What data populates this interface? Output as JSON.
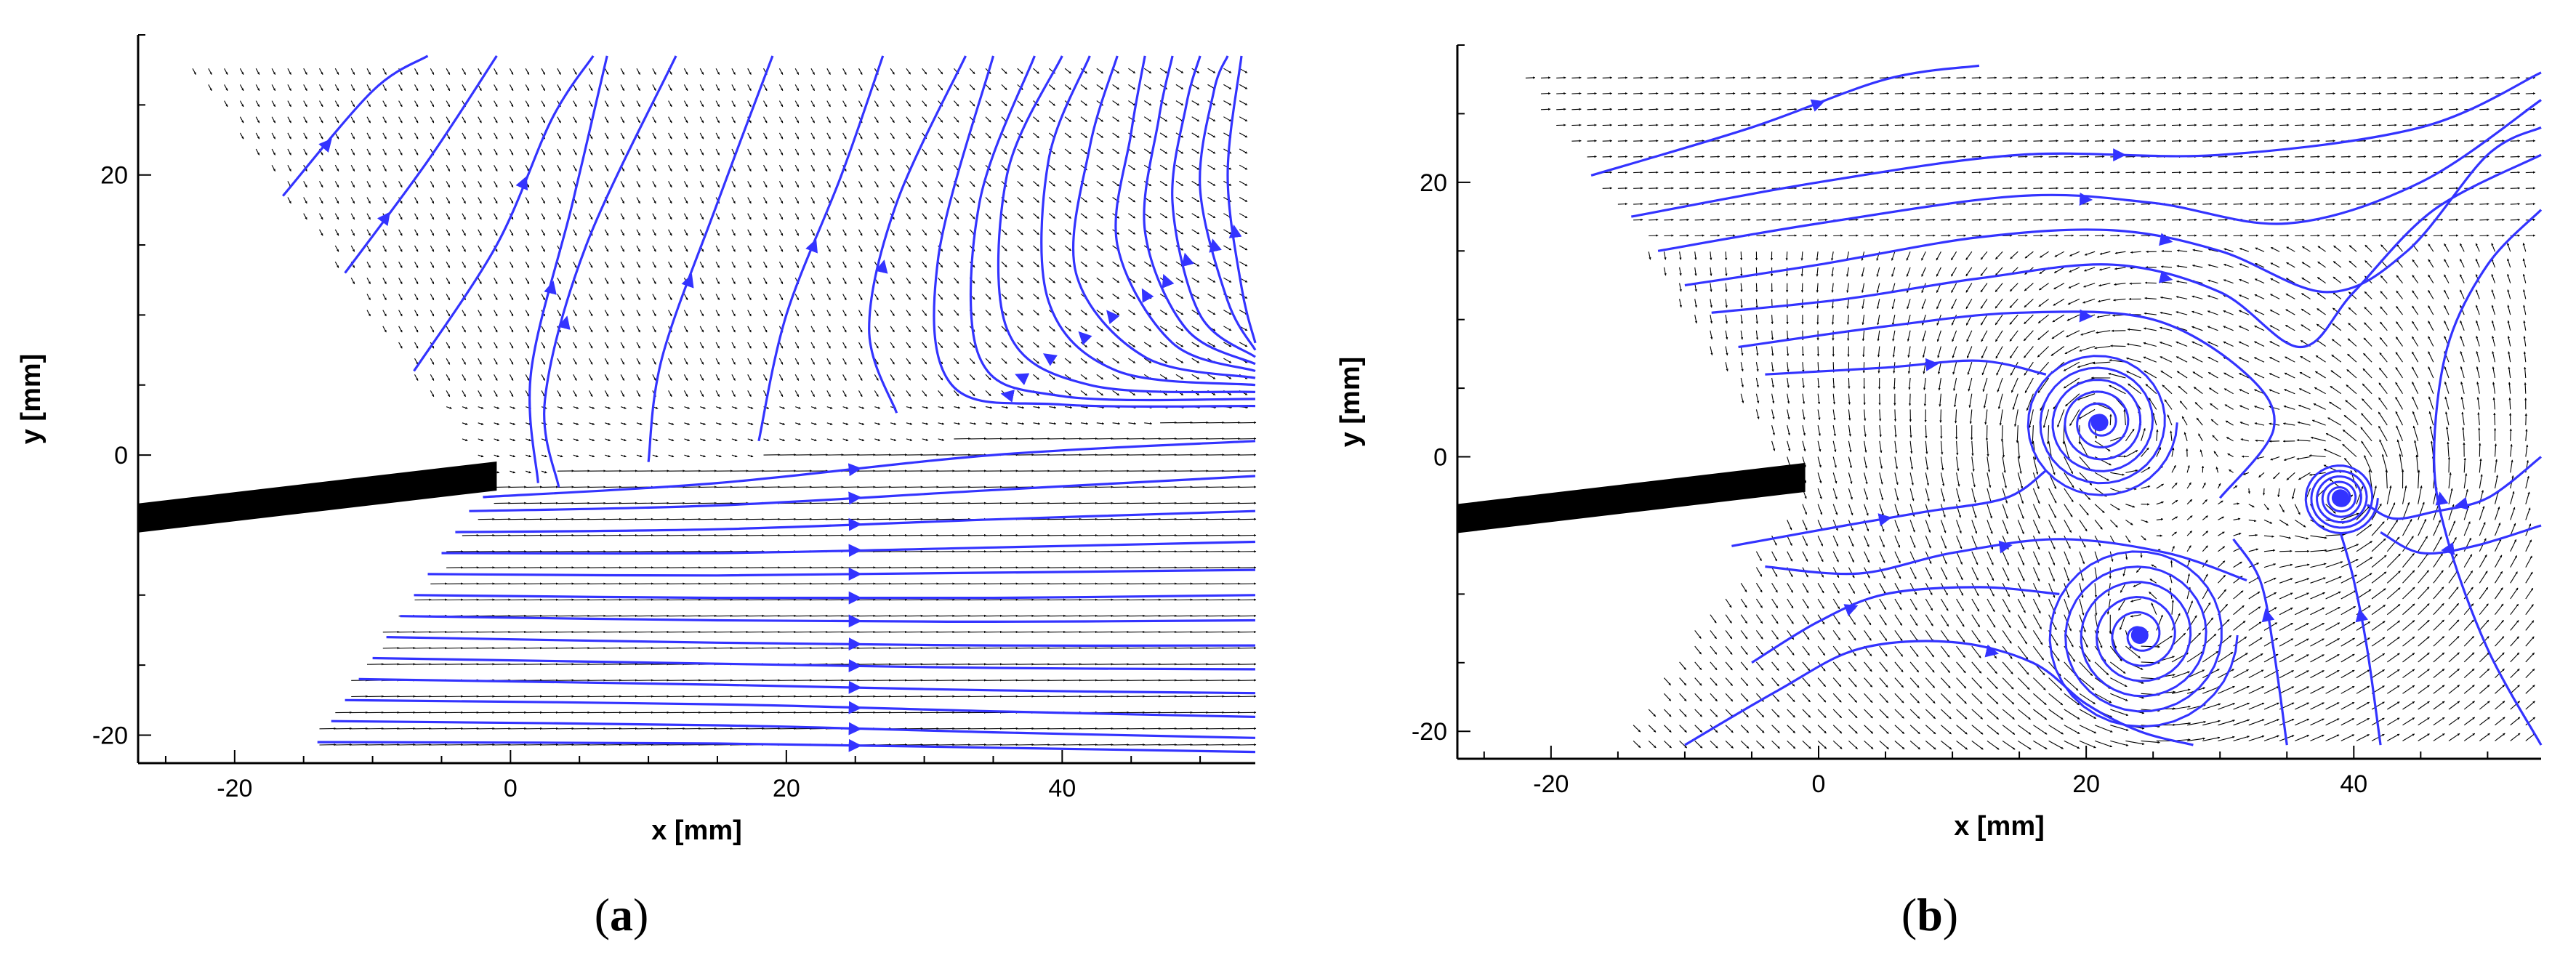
{
  "chart_data": [
    {
      "type": "vector-field",
      "panel_label": "a",
      "xlabel": "x [mm]",
      "ylabel": "y [mm]",
      "xlim": [
        -27,
        54
      ],
      "ylim": [
        -22,
        30
      ],
      "xticks": [
        -20,
        0,
        20,
        40
      ],
      "yticks": [
        -20,
        0,
        20
      ],
      "streamline_color": "#3333ff",
      "vector_color": "#000000",
      "body": {
        "type": "plate",
        "from": [
          -27,
          -4.5
        ],
        "to": [
          -1,
          -1.5
        ]
      },
      "mask_polygon": [
        [
          -24,
          28.5
        ],
        [
          -16,
          18
        ],
        [
          -1.5,
          -2
        ],
        [
          -1.5,
          -3
        ],
        [
          -9,
          -12
        ],
        [
          -15,
          -21
        ],
        [
          -27,
          -21
        ],
        [
          -27,
          28.5
        ]
      ],
      "domain": {
        "x_top_left": -24,
        "y_top": 28.5,
        "y_bottom": -21
      },
      "flow_pattern": "attached-jet-with-turning-outer-flow",
      "streamlines": [
        [
          [
            -16.5,
            18.5
          ],
          [
            -10,
            26
          ],
          [
            -6,
            28.5
          ]
        ],
        [
          [
            -12,
            13
          ],
          [
            -6,
            21
          ],
          [
            -1,
            28.5
          ]
        ],
        [
          [
            -7,
            6
          ],
          [
            -1,
            15
          ],
          [
            3,
            24
          ],
          [
            6,
            28.5
          ]
        ],
        [
          [
            2,
            -2
          ],
          [
            1.5,
            6
          ],
          [
            4.5,
            18
          ],
          [
            7,
            28.5
          ]
        ],
        [
          [
            3.5,
            -2.3
          ],
          [
            2.5,
            4
          ],
          [
            5.5,
            15
          ],
          [
            12,
            28.5
          ]
        ],
        [
          [
            10,
            -0.5
          ],
          [
            11,
            7
          ],
          [
            15,
            18
          ],
          [
            19,
            28.5
          ]
        ],
        [
          [
            18,
            1
          ],
          [
            20,
            10
          ],
          [
            24,
            20
          ],
          [
            27,
            28.5
          ]
        ],
        [
          [
            28,
            3
          ],
          [
            26,
            9
          ],
          [
            28,
            18
          ],
          [
            33,
            28.5
          ]
        ],
        [
          [
            54,
            3.5
          ],
          [
            40,
            3.6
          ],
          [
            32,
            5
          ],
          [
            31,
            14
          ],
          [
            35,
            28.5
          ]
        ],
        [
          [
            54,
            4
          ],
          [
            40,
            4.2
          ],
          [
            34,
            7
          ],
          [
            34,
            18
          ],
          [
            38,
            28.5
          ]
        ],
        [
          [
            54,
            4.5
          ],
          [
            42,
            5
          ],
          [
            36,
            9
          ],
          [
            36,
            20
          ],
          [
            40,
            28.5
          ]
        ],
        [
          [
            54,
            5
          ],
          [
            44,
            6
          ],
          [
            39,
            11
          ],
          [
            39,
            21
          ],
          [
            42,
            28.5
          ]
        ],
        [
          [
            54,
            5.5
          ],
          [
            46,
            7
          ],
          [
            41,
            13
          ],
          [
            42,
            22
          ],
          [
            44,
            28.5
          ]
        ],
        [
          [
            54,
            6
          ],
          [
            48,
            8
          ],
          [
            44,
            15
          ],
          [
            45,
            23
          ],
          [
            46,
            28.5
          ]
        ],
        [
          [
            54,
            6.5
          ],
          [
            49,
            9
          ],
          [
            46,
            16
          ],
          [
            47,
            24
          ],
          [
            48,
            28.5
          ]
        ],
        [
          [
            54,
            7
          ],
          [
            50,
            10
          ],
          [
            48,
            18
          ],
          [
            49,
            25
          ],
          [
            50,
            28.5
          ]
        ],
        [
          [
            54,
            7.5
          ],
          [
            52,
            11
          ],
          [
            50,
            19
          ],
          [
            51,
            26
          ],
          [
            52,
            28.5
          ]
        ],
        [
          [
            54,
            8
          ],
          [
            53,
            12
          ],
          [
            52,
            20
          ],
          [
            53,
            28.5
          ]
        ],
        [
          [
            -2,
            -3
          ],
          [
            15,
            -2
          ],
          [
            35,
            0
          ],
          [
            54,
            1
          ]
        ],
        [
          [
            -3,
            -4
          ],
          [
            15,
            -3.6
          ],
          [
            35,
            -2.5
          ],
          [
            54,
            -1.5
          ]
        ],
        [
          [
            -4,
            -5.5
          ],
          [
            15,
            -5.3
          ],
          [
            35,
            -4.6
          ],
          [
            54,
            -4
          ]
        ],
        [
          [
            -5,
            -7
          ],
          [
            15,
            -7
          ],
          [
            35,
            -6.6
          ],
          [
            54,
            -6.2
          ]
        ],
        [
          [
            -6,
            -8.5
          ],
          [
            15,
            -8.6
          ],
          [
            35,
            -8.4
          ],
          [
            54,
            -8.2
          ]
        ],
        [
          [
            -7,
            -10
          ],
          [
            15,
            -10.2
          ],
          [
            35,
            -10.2
          ],
          [
            54,
            -10
          ]
        ],
        [
          [
            -8,
            -11.5
          ],
          [
            15,
            -11.8
          ],
          [
            35,
            -11.9
          ],
          [
            54,
            -11.8
          ]
        ],
        [
          [
            -9,
            -13
          ],
          [
            15,
            -13.4
          ],
          [
            35,
            -13.6
          ],
          [
            54,
            -13.6
          ]
        ],
        [
          [
            -10,
            -14.5
          ],
          [
            15,
            -14.9
          ],
          [
            35,
            -15.2
          ],
          [
            54,
            -15.3
          ]
        ],
        [
          [
            -11,
            -16
          ],
          [
            15,
            -16.4
          ],
          [
            35,
            -16.8
          ],
          [
            54,
            -17
          ]
        ],
        [
          [
            -12,
            -17.5
          ],
          [
            15,
            -17.8
          ],
          [
            35,
            -18.3
          ],
          [
            54,
            -18.7
          ]
        ],
        [
          [
            -13,
            -19
          ],
          [
            15,
            -19.3
          ],
          [
            35,
            -19.8
          ],
          [
            54,
            -20.2
          ]
        ],
        [
          [
            -14,
            -20.5
          ],
          [
            15,
            -20.6
          ],
          [
            35,
            -20.9
          ],
          [
            54,
            -21.2
          ]
        ]
      ]
    },
    {
      "type": "vector-field",
      "panel_label": "b",
      "xlabel": "x [mm]",
      "ylabel": "y [mm]",
      "xlim": [
        -27,
        54
      ],
      "ylim": [
        -22,
        30
      ],
      "xticks": [
        -20,
        0,
        20,
        40
      ],
      "yticks": [
        -20,
        0,
        20
      ],
      "streamline_color": "#3333ff",
      "vector_color": "#000000",
      "body": {
        "type": "plate",
        "from": [
          -27,
          -4.5
        ],
        "to": [
          -1,
          -1.5
        ]
      },
      "mask_polygon": [
        [
          -23,
          28
        ],
        [
          -15,
          18
        ],
        [
          -1.5,
          -2
        ],
        [
          -1.5,
          -3
        ],
        [
          -9,
          -12
        ],
        [
          -15,
          -21
        ],
        [
          -27,
          -21
        ],
        [
          -27,
          28
        ]
      ],
      "domain": {
        "x_top_left": -23,
        "y_top": 28,
        "y_bottom": -21
      },
      "flow_pattern": "separated-vortex-shedding",
      "vortex_centers": [
        [
          21,
          2.5
        ],
        [
          24,
          -13
        ],
        [
          39,
          -3
        ]
      ],
      "streamlines": [
        [
          [
            -17,
            20.5
          ],
          [
            -5,
            24
          ],
          [
            5,
            27.5
          ],
          [
            12,
            28.5
          ]
        ],
        [
          [
            -14,
            17.5
          ],
          [
            0,
            20
          ],
          [
            15,
            22
          ],
          [
            30,
            22
          ],
          [
            45,
            24
          ],
          [
            54,
            28
          ]
        ],
        [
          [
            -12,
            15
          ],
          [
            0,
            17
          ],
          [
            15,
            19
          ],
          [
            25,
            18.5
          ],
          [
            35,
            17
          ],
          [
            45,
            20
          ],
          [
            54,
            26
          ]
        ],
        [
          [
            -10,
            12.5
          ],
          [
            0,
            14
          ],
          [
            12,
            16
          ],
          [
            22,
            16.5
          ],
          [
            30,
            15
          ],
          [
            38,
            12
          ],
          [
            44,
            15
          ],
          [
            50,
            22
          ],
          [
            54,
            24
          ]
        ],
        [
          [
            -8,
            10.5
          ],
          [
            2,
            11.5
          ],
          [
            12,
            13
          ],
          [
            22,
            14
          ],
          [
            30,
            12
          ],
          [
            36,
            8
          ],
          [
            40,
            12
          ],
          [
            46,
            18
          ],
          [
            54,
            22
          ]
        ],
        [
          [
            -6,
            8
          ],
          [
            5,
            9.5
          ],
          [
            15,
            10.5
          ],
          [
            25,
            10
          ],
          [
            32,
            6
          ],
          [
            34,
            2
          ],
          [
            30,
            -3
          ]
        ],
        [
          [
            -4,
            6
          ],
          [
            5,
            6.5
          ],
          [
            12,
            7
          ],
          [
            17,
            6
          ]
        ],
        [
          [
            -6.5,
            -6.5
          ],
          [
            2,
            -5
          ],
          [
            8,
            -4
          ],
          [
            14,
            -3
          ],
          [
            17,
            -1
          ]
        ],
        [
          [
            -4,
            -8
          ],
          [
            3,
            -8.5
          ],
          [
            10,
            -7
          ],
          [
            18,
            -6
          ],
          [
            26,
            -7
          ],
          [
            32,
            -9
          ]
        ],
        [
          [
            -5,
            -15
          ],
          [
            0,
            -12
          ],
          [
            5,
            -10
          ],
          [
            12,
            -9.5
          ],
          [
            18,
            -10
          ]
        ],
        [
          [
            -10,
            -21
          ],
          [
            -3,
            -17
          ],
          [
            3,
            -14
          ],
          [
            10,
            -13.5
          ],
          [
            16,
            -15
          ],
          [
            20,
            -18
          ],
          [
            24,
            -20
          ],
          [
            28,
            -21
          ]
        ],
        [
          [
            54,
            -21
          ],
          [
            50,
            -14
          ],
          [
            47,
            -6
          ],
          [
            46,
            0
          ],
          [
            47,
            8
          ],
          [
            50,
            14
          ],
          [
            54,
            18
          ]
        ],
        [
          [
            54,
            0
          ],
          [
            50,
            -3
          ],
          [
            46,
            -4
          ],
          [
            43,
            -4.5
          ],
          [
            41,
            -3.5
          ]
        ],
        [
          [
            54,
            -5
          ],
          [
            49,
            -6.5
          ],
          [
            45,
            -7
          ],
          [
            42,
            -5.5
          ]
        ],
        [
          [
            42,
            -21
          ],
          [
            41,
            -14
          ],
          [
            40,
            -9
          ],
          [
            39,
            -5.5
          ]
        ],
        [
          [
            35,
            -21
          ],
          [
            34,
            -14
          ],
          [
            33,
            -9
          ],
          [
            31,
            -6
          ]
        ]
      ]
    }
  ],
  "panel_captions": [
    {
      "open": "(",
      "letter": "a",
      "close": ")"
    },
    {
      "open": "(",
      "letter": "b",
      "close": ")"
    }
  ]
}
